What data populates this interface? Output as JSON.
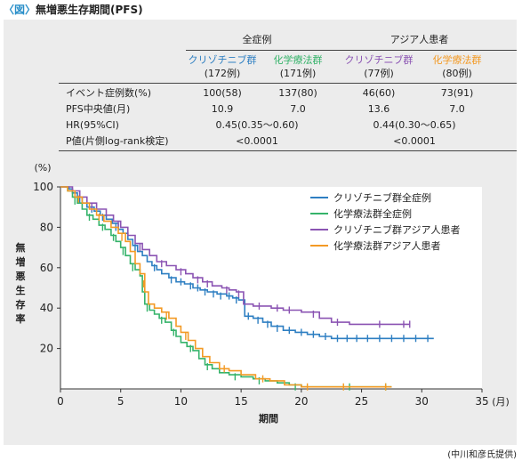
{
  "figure": {
    "tag": "〈図〉",
    "title": "無増悪生存期間(PFS)",
    "credit": "(中川和彦氏提供)"
  },
  "table": {
    "group_headers": [
      "全症例",
      "アジア人患者"
    ],
    "arms": [
      {
        "name": "クリゾチニブ群",
        "n": "(172例)",
        "color": "#2e7fc2"
      },
      {
        "name": "化学療法群",
        "n": "(171例)",
        "color": "#35b36a"
      },
      {
        "name": "クリゾチニブ群",
        "n": "(77例)",
        "color": "#8b54b3"
      },
      {
        "name": "化学療法群",
        "n": "(80例)",
        "color": "#f39a25"
      }
    ],
    "rows": [
      {
        "label": "イベント症例数(%)",
        "values": [
          "100(58)",
          "137(80)",
          "46(60)",
          "73(91)"
        ]
      },
      {
        "label": "PFS中央値(月)",
        "values": [
          "10.9",
          "7.0",
          "13.6",
          "7.0"
        ]
      },
      {
        "label": "HR(95%CI)",
        "values": [
          "0.45(0.35〜0.60)",
          "0.44(0.30〜0.65)"
        ]
      },
      {
        "label": "P値(片側log-rank検定)",
        "values": [
          "<0.0001",
          "<0.0001"
        ]
      }
    ]
  },
  "chart_data": {
    "type": "line",
    "ylabel": "無増悪生存率",
    "ylabel_unit": "(%)",
    "xlabel": "期間",
    "xlabel_unit": "(月)",
    "xlim": [
      0,
      35
    ],
    "ylim": [
      0,
      100
    ],
    "xticks": [
      0,
      5,
      10,
      15,
      20,
      25,
      30,
      35
    ],
    "yticks": [
      20,
      40,
      60,
      80,
      100
    ],
    "legend_position": "top-right",
    "series": [
      {
        "name": "クリゾチニブ群全症例",
        "color": "#2e7fc2",
        "points": [
          [
            0,
            100
          ],
          [
            0.7,
            99
          ],
          [
            1.0,
            97
          ],
          [
            1.4,
            95
          ],
          [
            1.8,
            92
          ],
          [
            2.2,
            90
          ],
          [
            2.8,
            88
          ],
          [
            3.3,
            86
          ],
          [
            3.8,
            84
          ],
          [
            4.3,
            82
          ],
          [
            4.8,
            79
          ],
          [
            5.2,
            77
          ],
          [
            5.6,
            74
          ],
          [
            6.0,
            71
          ],
          [
            6.4,
            68
          ],
          [
            6.8,
            66
          ],
          [
            7.2,
            63
          ],
          [
            7.6,
            61
          ],
          [
            8.0,
            59
          ],
          [
            8.4,
            57
          ],
          [
            9.0,
            55
          ],
          [
            9.6,
            53
          ],
          [
            10.3,
            52
          ],
          [
            11.0,
            50
          ],
          [
            11.6,
            49
          ],
          [
            12.2,
            48
          ],
          [
            13.0,
            47
          ],
          [
            13.8,
            46
          ],
          [
            14.3,
            45
          ],
          [
            14.8,
            44
          ],
          [
            15.3,
            36
          ],
          [
            16.0,
            35
          ],
          [
            16.8,
            33
          ],
          [
            17.5,
            31
          ],
          [
            18.5,
            29
          ],
          [
            19.5,
            28
          ],
          [
            20.5,
            27
          ],
          [
            21.5,
            26
          ],
          [
            22.5,
            25
          ],
          [
            31.0,
            25
          ]
        ],
        "censors": [
          [
            1.6,
            94
          ],
          [
            2.6,
            89
          ],
          [
            3.5,
            85
          ],
          [
            4.6,
            80
          ],
          [
            6.2,
            70
          ],
          [
            7.8,
            60
          ],
          [
            9.2,
            54
          ],
          [
            10.0,
            53
          ],
          [
            10.8,
            51
          ],
          [
            11.4,
            50
          ],
          [
            12.0,
            48
          ],
          [
            12.7,
            47
          ],
          [
            13.3,
            46
          ],
          [
            14.0,
            46
          ],
          [
            14.6,
            44
          ],
          [
            15.6,
            36
          ],
          [
            16.4,
            34
          ],
          [
            17.2,
            32
          ],
          [
            18.0,
            30
          ],
          [
            19.0,
            29
          ],
          [
            20.0,
            28
          ],
          [
            21.0,
            27
          ],
          [
            22.0,
            26
          ],
          [
            23.0,
            25
          ],
          [
            23.8,
            25
          ],
          [
            24.6,
            25
          ],
          [
            25.5,
            25
          ],
          [
            26.5,
            25
          ],
          [
            27.5,
            25
          ],
          [
            28.5,
            25
          ],
          [
            29.5,
            25
          ],
          [
            30.5,
            25
          ]
        ]
      },
      {
        "name": "化学療法群全症例",
        "color": "#35b36a",
        "points": [
          [
            0,
            100
          ],
          [
            0.6,
            98
          ],
          [
            1.0,
            95
          ],
          [
            1.4,
            92
          ],
          [
            1.8,
            89
          ],
          [
            2.2,
            86
          ],
          [
            2.7,
            84
          ],
          [
            3.2,
            81
          ],
          [
            3.7,
            79
          ],
          [
            4.2,
            76
          ],
          [
            4.6,
            73
          ],
          [
            5.0,
            70
          ],
          [
            5.4,
            66
          ],
          [
            5.8,
            62
          ],
          [
            6.2,
            59
          ],
          [
            6.6,
            56
          ],
          [
            6.8,
            48
          ],
          [
            7.0,
            42
          ],
          [
            7.4,
            39
          ],
          [
            7.8,
            37
          ],
          [
            8.2,
            35
          ],
          [
            8.7,
            33
          ],
          [
            9.2,
            29
          ],
          [
            9.6,
            26
          ],
          [
            10.0,
            23
          ],
          [
            10.5,
            21
          ],
          [
            11.0,
            19
          ],
          [
            11.5,
            15
          ],
          [
            12.0,
            12
          ],
          [
            12.6,
            10
          ],
          [
            13.2,
            8
          ],
          [
            14.0,
            7
          ],
          [
            15.0,
            6
          ],
          [
            16.0,
            5
          ],
          [
            17.0,
            4
          ],
          [
            18.0,
            3
          ],
          [
            19.0,
            2
          ],
          [
            20.0,
            1
          ],
          [
            27.5,
            1
          ]
        ],
        "censors": [
          [
            1.2,
            93
          ],
          [
            2.4,
            85
          ],
          [
            3.5,
            80
          ],
          [
            4.4,
            75
          ],
          [
            5.2,
            68
          ],
          [
            6.0,
            60
          ],
          [
            7.2,
            40
          ],
          [
            8.4,
            34
          ],
          [
            9.4,
            28
          ],
          [
            10.8,
            20
          ],
          [
            12.2,
            11
          ],
          [
            14.5,
            6
          ],
          [
            16.5,
            4
          ],
          [
            19.5,
            1
          ],
          [
            24.0,
            1
          ],
          [
            27.0,
            1
          ]
        ]
      },
      {
        "name": "クリゾチニブ群アジア人患者",
        "color": "#8b54b3",
        "points": [
          [
            0,
            100
          ],
          [
            1.0,
            98
          ],
          [
            1.6,
            95
          ],
          [
            2.2,
            92
          ],
          [
            3.0,
            89
          ],
          [
            3.8,
            86
          ],
          [
            4.4,
            83
          ],
          [
            5.0,
            80
          ],
          [
            5.6,
            76
          ],
          [
            6.2,
            72
          ],
          [
            6.8,
            69
          ],
          [
            7.4,
            66
          ],
          [
            8.0,
            63
          ],
          [
            8.8,
            61
          ],
          [
            9.6,
            59
          ],
          [
            10.4,
            57
          ],
          [
            11.0,
            55
          ],
          [
            11.8,
            53
          ],
          [
            12.6,
            51
          ],
          [
            13.4,
            50
          ],
          [
            14.0,
            49
          ],
          [
            14.6,
            48
          ],
          [
            15.2,
            42
          ],
          [
            16.0,
            41
          ],
          [
            17.5,
            40
          ],
          [
            18.5,
            39
          ],
          [
            20.0,
            38
          ],
          [
            21.5,
            35
          ],
          [
            22.5,
            33
          ],
          [
            24.0,
            32
          ],
          [
            29.0,
            32
          ]
        ],
        "censors": [
          [
            2.6,
            90
          ],
          [
            4.8,
            81
          ],
          [
            6.6,
            70
          ],
          [
            8.4,
            62
          ],
          [
            10.0,
            58
          ],
          [
            11.4,
            54
          ],
          [
            12.2,
            52
          ],
          [
            13.8,
            49
          ],
          [
            14.8,
            47
          ],
          [
            16.5,
            41
          ],
          [
            18.0,
            40
          ],
          [
            19.0,
            39
          ],
          [
            21.0,
            37
          ],
          [
            23.0,
            33
          ],
          [
            26.5,
            32
          ],
          [
            28.5,
            32
          ],
          [
            29.0,
            32
          ]
        ]
      },
      {
        "name": "化学療法群アジア人患者",
        "color": "#f39a25",
        "points": [
          [
            0,
            100
          ],
          [
            0.6,
            98
          ],
          [
            1.2,
            95
          ],
          [
            1.8,
            92
          ],
          [
            2.4,
            89
          ],
          [
            3.0,
            86
          ],
          [
            3.6,
            83
          ],
          [
            4.2,
            80
          ],
          [
            4.8,
            77
          ],
          [
            5.4,
            73
          ],
          [
            5.8,
            68
          ],
          [
            6.2,
            62
          ],
          [
            6.6,
            57
          ],
          [
            7.0,
            48
          ],
          [
            7.3,
            42
          ],
          [
            7.8,
            40
          ],
          [
            8.4,
            38
          ],
          [
            9.0,
            35
          ],
          [
            9.6,
            31
          ],
          [
            10.0,
            28
          ],
          [
            10.6,
            24
          ],
          [
            11.2,
            20
          ],
          [
            11.8,
            16
          ],
          [
            12.4,
            13
          ],
          [
            13.2,
            10
          ],
          [
            14.0,
            9
          ],
          [
            15.0,
            7
          ],
          [
            16.2,
            5
          ],
          [
            17.4,
            4
          ],
          [
            18.6,
            2
          ],
          [
            20.0,
            1
          ],
          [
            27.5,
            1
          ]
        ],
        "censors": [
          [
            1.5,
            94
          ],
          [
            3.2,
            85
          ],
          [
            5.1,
            75
          ],
          [
            6.9,
            52
          ],
          [
            8.8,
            36
          ],
          [
            10.4,
            26
          ],
          [
            13.6,
            10
          ],
          [
            16.8,
            5
          ],
          [
            20.5,
            1
          ],
          [
            23.5,
            1
          ],
          [
            27.0,
            1
          ]
        ]
      }
    ]
  }
}
